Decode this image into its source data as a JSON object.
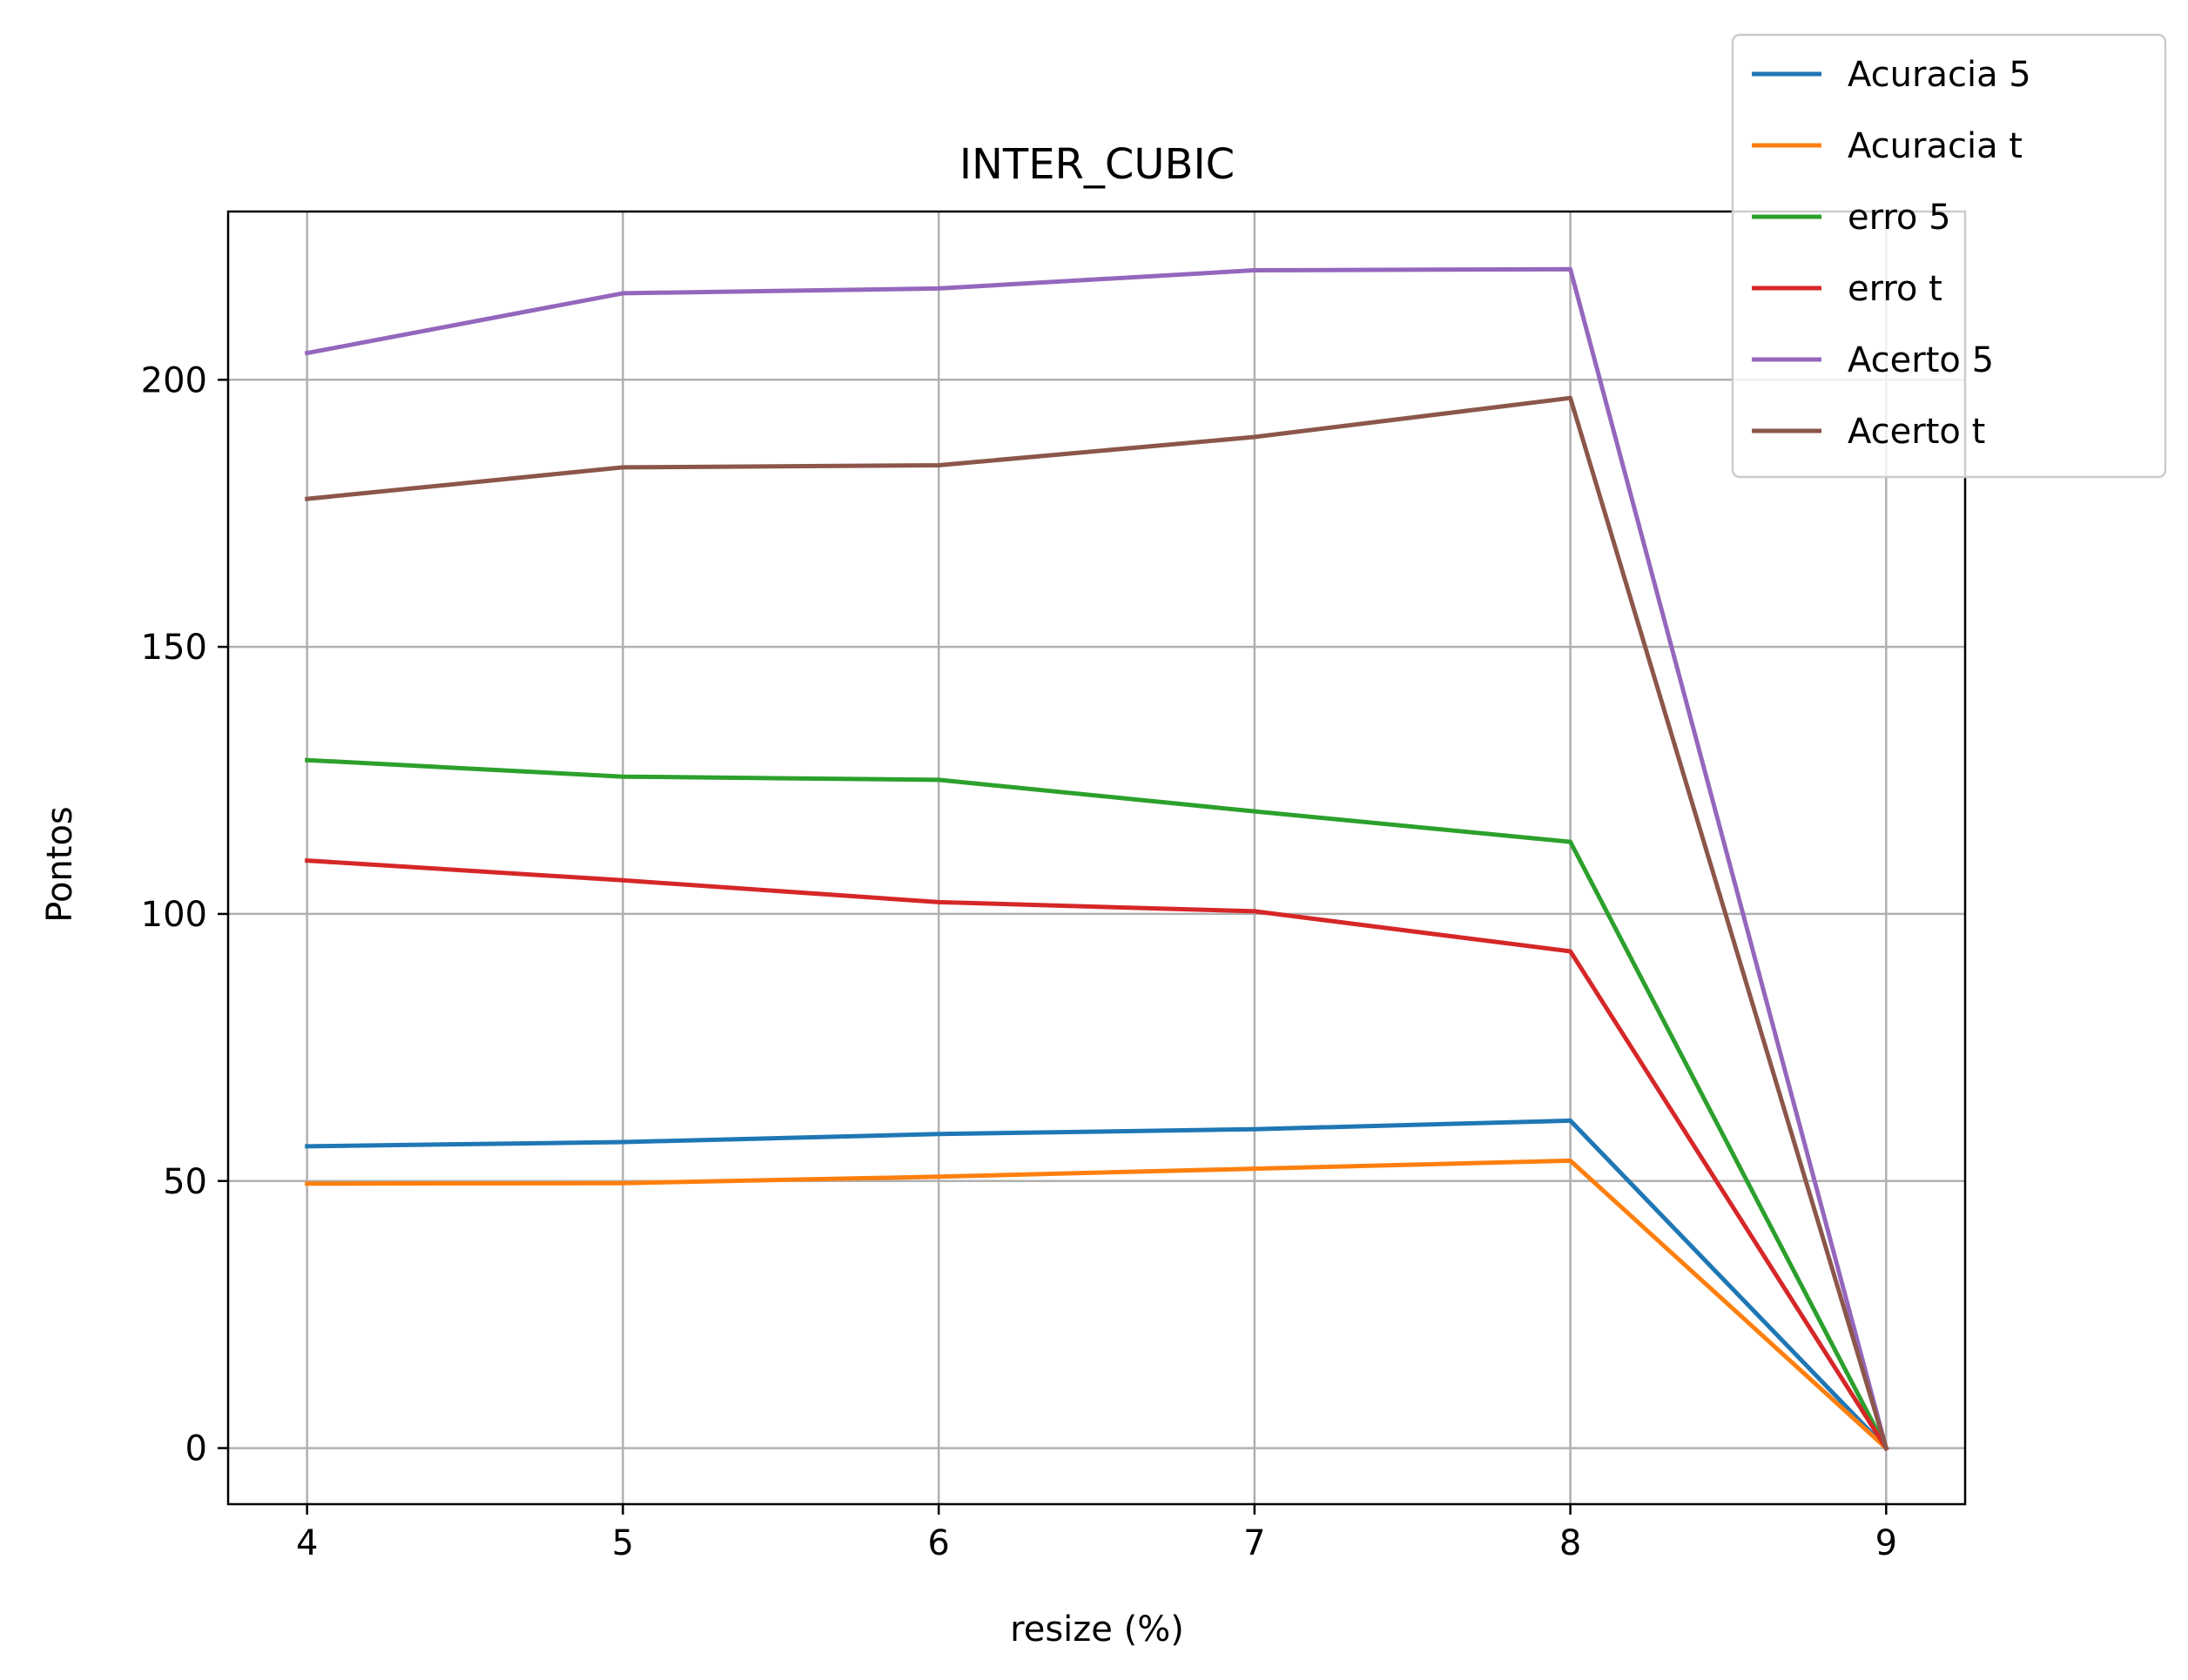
{
  "chart_data": {
    "type": "line",
    "title": "INTER_CUBIC",
    "xlabel": "resize (%)",
    "ylabel": "Pontos",
    "x": [
      4,
      5,
      6,
      7,
      8,
      9
    ],
    "xlim": [
      3.75,
      9.25
    ],
    "ylim": [
      -10.5,
      231.5
    ],
    "xticks": [
      4,
      5,
      6,
      7,
      8,
      9
    ],
    "yticks": [
      0,
      50,
      100,
      150,
      200
    ],
    "grid": true,
    "legend_position": "top-right",
    "series": [
      {
        "name": "Acuracia 5",
        "color": "#1f77b4",
        "values": [
          56.5,
          57.3,
          58.8,
          59.7,
          61.3,
          0
        ]
      },
      {
        "name": "Acuracia t",
        "color": "#ff7f0e",
        "values": [
          49.5,
          49.6,
          50.8,
          52.3,
          53.8,
          0
        ]
      },
      {
        "name": "erro 5",
        "color": "#2ca02c",
        "values": [
          128.8,
          125.7,
          125.1,
          119.2,
          113.5,
          0
        ]
      },
      {
        "name": "erro t",
        "color": "#d62728",
        "values": [
          110.0,
          106.3,
          102.2,
          100.5,
          93.0,
          0
        ]
      },
      {
        "name": "Acerto 5",
        "color": "#9467bd",
        "values": [
          205.0,
          216.2,
          217.1,
          220.5,
          220.7,
          0
        ]
      },
      {
        "name": "Acerto t",
        "color": "#8c564b",
        "values": [
          177.7,
          183.6,
          184.0,
          189.3,
          196.6,
          0
        ]
      }
    ]
  }
}
